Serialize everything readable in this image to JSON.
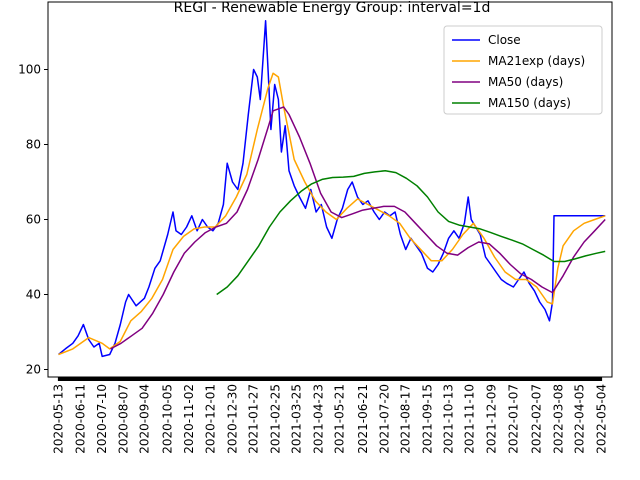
{
  "chart_data": {
    "type": "line",
    "title": "REGI - Renewable Energy Group: interval=1d",
    "xlabel": "",
    "ylabel": "",
    "xlim": [
      "2020-04-29",
      "2022-05-18"
    ],
    "ylim": [
      18,
      118
    ],
    "y_ticks": [
      20,
      40,
      60,
      80,
      100
    ],
    "x_ticks": [
      "2020-05-13",
      "2020-06-11",
      "2020-07-10",
      "2020-08-07",
      "2020-09-04",
      "2020-10-05",
      "2020-11-02",
      "2020-12-01",
      "2020-12-30",
      "2021-01-27",
      "2021-02-25",
      "2021-03-25",
      "2021-04-23",
      "2021-05-21",
      "2021-06-21",
      "2021-07-20",
      "2021-08-17",
      "2021-09-15",
      "2021-10-13",
      "2021-11-10",
      "2021-12-09",
      "2022-01-07",
      "2022-02-07",
      "2022-03-08",
      "2022-04-05",
      "2022-05-04"
    ],
    "grid": false,
    "legend_position": "top-right",
    "series": [
      {
        "name": "Close",
        "color": "#0000ff",
        "points": [
          [
            "2020-05-13",
            24
          ],
          [
            "2020-05-22",
            25.5
          ],
          [
            "2020-06-01",
            27
          ],
          [
            "2020-06-08",
            29
          ],
          [
            "2020-06-15",
            32
          ],
          [
            "2020-06-22",
            28
          ],
          [
            "2020-06-29",
            26
          ],
          [
            "2020-07-06",
            27
          ],
          [
            "2020-07-10",
            23.5
          ],
          [
            "2020-07-20",
            24
          ],
          [
            "2020-07-27",
            27
          ],
          [
            "2020-08-03",
            32
          ],
          [
            "2020-08-10",
            38
          ],
          [
            "2020-08-14",
            40
          ],
          [
            "2020-08-24",
            37
          ],
          [
            "2020-09-04",
            39
          ],
          [
            "2020-09-10",
            42
          ],
          [
            "2020-09-18",
            47
          ],
          [
            "2020-09-25",
            49
          ],
          [
            "2020-10-05",
            56
          ],
          [
            "2020-10-12",
            62
          ],
          [
            "2020-10-16",
            57
          ],
          [
            "2020-10-23",
            56
          ],
          [
            "2020-10-30",
            58
          ],
          [
            "2020-11-06",
            61
          ],
          [
            "2020-11-13",
            57
          ],
          [
            "2020-11-20",
            60
          ],
          [
            "2020-11-27",
            58
          ],
          [
            "2020-12-04",
            57
          ],
          [
            "2020-12-11",
            59
          ],
          [
            "2020-12-18",
            64
          ],
          [
            "2020-12-23",
            75
          ],
          [
            "2020-12-30",
            70
          ],
          [
            "2021-01-06",
            68
          ],
          [
            "2021-01-13",
            75
          ],
          [
            "2021-01-20",
            88
          ],
          [
            "2021-01-27",
            100
          ],
          [
            "2021-02-01",
            98
          ],
          [
            "2021-02-05",
            92
          ],
          [
            "2021-02-10",
            107
          ],
          [
            "2021-02-12",
            113
          ],
          [
            "2021-02-16",
            97
          ],
          [
            "2021-02-19",
            84
          ],
          [
            "2021-02-24",
            96
          ],
          [
            "2021-03-01",
            92
          ],
          [
            "2021-03-05",
            78
          ],
          [
            "2021-03-10",
            85
          ],
          [
            "2021-03-15",
            73
          ],
          [
            "2021-03-22",
            69
          ],
          [
            "2021-03-29",
            66
          ],
          [
            "2021-04-06",
            63
          ],
          [
            "2021-04-13",
            68
          ],
          [
            "2021-04-20",
            62
          ],
          [
            "2021-04-27",
            64
          ],
          [
            "2021-05-04",
            58
          ],
          [
            "2021-05-11",
            55
          ],
          [
            "2021-05-18",
            60
          ],
          [
            "2021-05-25",
            63
          ],
          [
            "2021-06-01",
            68
          ],
          [
            "2021-06-07",
            70
          ],
          [
            "2021-06-14",
            66
          ],
          [
            "2021-06-21",
            64
          ],
          [
            "2021-06-28",
            65
          ],
          [
            "2021-07-06",
            62
          ],
          [
            "2021-07-13",
            60
          ],
          [
            "2021-07-20",
            62
          ],
          [
            "2021-07-27",
            61
          ],
          [
            "2021-08-03",
            62
          ],
          [
            "2021-08-10",
            56
          ],
          [
            "2021-08-17",
            52
          ],
          [
            "2021-08-24",
            55
          ],
          [
            "2021-08-31",
            53
          ],
          [
            "2021-09-07",
            51
          ],
          [
            "2021-09-15",
            47
          ],
          [
            "2021-09-22",
            46
          ],
          [
            "2021-09-29",
            48
          ],
          [
            "2021-10-06",
            51
          ],
          [
            "2021-10-13",
            55
          ],
          [
            "2021-10-20",
            57
          ],
          [
            "2021-10-27",
            55
          ],
          [
            "2021-11-03",
            59
          ],
          [
            "2021-11-08",
            66
          ],
          [
            "2021-11-12",
            60
          ],
          [
            "2021-11-18",
            58
          ],
          [
            "2021-11-24",
            56
          ],
          [
            "2021-12-01",
            50
          ],
          [
            "2021-12-08",
            48
          ],
          [
            "2021-12-15",
            46
          ],
          [
            "2021-12-22",
            44
          ],
          [
            "2021-12-29",
            43
          ],
          [
            "2022-01-07",
            42
          ],
          [
            "2022-01-14",
            44
          ],
          [
            "2022-01-21",
            46
          ],
          [
            "2022-01-28",
            43
          ],
          [
            "2022-02-04",
            41
          ],
          [
            "2022-02-11",
            38
          ],
          [
            "2022-02-18",
            36
          ],
          [
            "2022-02-24",
            33
          ],
          [
            "2022-02-28",
            38
          ],
          [
            "2022-03-02",
            61
          ],
          [
            "2022-03-09",
            61
          ],
          [
            "2022-03-16",
            61
          ],
          [
            "2022-03-31",
            61
          ],
          [
            "2022-04-15",
            61
          ],
          [
            "2022-04-30",
            61
          ],
          [
            "2022-05-09",
            61
          ]
        ]
      },
      {
        "name": "MA21exp (days)",
        "color": "#ffa500",
        "points": [
          [
            "2020-05-13",
            24
          ],
          [
            "2020-06-01",
            25.5
          ],
          [
            "2020-06-22",
            28.5
          ],
          [
            "2020-07-10",
            27
          ],
          [
            "2020-07-20",
            25.5
          ],
          [
            "2020-08-03",
            27.5
          ],
          [
            "2020-08-17",
            33
          ],
          [
            "2020-08-31",
            35.5
          ],
          [
            "2020-09-14",
            39
          ],
          [
            "2020-09-28",
            44
          ],
          [
            "2020-10-12",
            52
          ],
          [
            "2020-10-26",
            55.5
          ],
          [
            "2020-11-09",
            57.5
          ],
          [
            "2020-11-23",
            58
          ],
          [
            "2020-12-07",
            58
          ],
          [
            "2020-12-21",
            61
          ],
          [
            "2021-01-04",
            66
          ],
          [
            "2021-01-18",
            72
          ],
          [
            "2021-02-01",
            84
          ],
          [
            "2021-02-15",
            95
          ],
          [
            "2021-02-22",
            99
          ],
          [
            "2021-03-01",
            98
          ],
          [
            "2021-03-08",
            90
          ],
          [
            "2021-03-15",
            83
          ],
          [
            "2021-03-22",
            76
          ],
          [
            "2021-04-05",
            70
          ],
          [
            "2021-04-19",
            65
          ],
          [
            "2021-05-03",
            62
          ],
          [
            "2021-05-17",
            60
          ],
          [
            "2021-05-31",
            63
          ],
          [
            "2021-06-14",
            65.5
          ],
          [
            "2021-06-28",
            64
          ],
          [
            "2021-07-12",
            62.5
          ],
          [
            "2021-07-26",
            61
          ],
          [
            "2021-08-09",
            59
          ],
          [
            "2021-08-23",
            55
          ],
          [
            "2021-09-06",
            52
          ],
          [
            "2021-09-20",
            49
          ],
          [
            "2021-10-04",
            49
          ],
          [
            "2021-10-18",
            52
          ],
          [
            "2021-11-01",
            56
          ],
          [
            "2021-11-15",
            59
          ],
          [
            "2021-11-29",
            55
          ],
          [
            "2021-12-13",
            50
          ],
          [
            "2021-12-27",
            46
          ],
          [
            "2022-01-10",
            44
          ],
          [
            "2022-01-24",
            44
          ],
          [
            "2022-02-07",
            42
          ],
          [
            "2022-02-21",
            38
          ],
          [
            "2022-02-28",
            37.5
          ],
          [
            "2022-03-07",
            47
          ],
          [
            "2022-03-14",
            53
          ],
          [
            "2022-03-28",
            57
          ],
          [
            "2022-04-11",
            59
          ],
          [
            "2022-04-25",
            60
          ],
          [
            "2022-05-09",
            61
          ]
        ]
      },
      {
        "name": "MA50 (days)",
        "color": "#800080",
        "points": [
          [
            "2020-07-21",
            25.5
          ],
          [
            "2020-08-04",
            27
          ],
          [
            "2020-08-18",
            29
          ],
          [
            "2020-09-01",
            31
          ],
          [
            "2020-09-15",
            35
          ],
          [
            "2020-09-29",
            40
          ],
          [
            "2020-10-13",
            46
          ],
          [
            "2020-10-27",
            51
          ],
          [
            "2020-11-10",
            54
          ],
          [
            "2020-11-24",
            56.5
          ],
          [
            "2020-12-08",
            58
          ],
          [
            "2020-12-22",
            59
          ],
          [
            "2021-01-05",
            62
          ],
          [
            "2021-01-19",
            68
          ],
          [
            "2021-02-02",
            76
          ],
          [
            "2021-02-16",
            85
          ],
          [
            "2021-02-22",
            89
          ],
          [
            "2021-03-01",
            89.5
          ],
          [
            "2021-03-08",
            90
          ],
          [
            "2021-03-15",
            88
          ],
          [
            "2021-03-29",
            82
          ],
          [
            "2021-04-12",
            75
          ],
          [
            "2021-04-26",
            67
          ],
          [
            "2021-05-10",
            62
          ],
          [
            "2021-05-24",
            60.5
          ],
          [
            "2021-06-07",
            61.5
          ],
          [
            "2021-06-21",
            62.5
          ],
          [
            "2021-07-05",
            63
          ],
          [
            "2021-07-19",
            63.5
          ],
          [
            "2021-08-02",
            63.5
          ],
          [
            "2021-08-16",
            62
          ],
          [
            "2021-08-30",
            59
          ],
          [
            "2021-09-13",
            56
          ],
          [
            "2021-09-27",
            53
          ],
          [
            "2021-10-11",
            51
          ],
          [
            "2021-10-25",
            50.5
          ],
          [
            "2021-11-08",
            52.5
          ],
          [
            "2021-11-22",
            54
          ],
          [
            "2021-12-06",
            53.5
          ],
          [
            "2021-12-20",
            51
          ],
          [
            "2022-01-03",
            48
          ],
          [
            "2022-01-17",
            45.5
          ],
          [
            "2022-01-31",
            44
          ],
          [
            "2022-02-14",
            42
          ],
          [
            "2022-02-28",
            40.5
          ],
          [
            "2022-03-14",
            45
          ],
          [
            "2022-03-28",
            50
          ],
          [
            "2022-04-11",
            54
          ],
          [
            "2022-04-25",
            57
          ],
          [
            "2022-05-09",
            60
          ]
        ]
      },
      {
        "name": "MA150 (days)",
        "color": "#008000",
        "points": [
          [
            "2020-12-09",
            40
          ],
          [
            "2020-12-23",
            42
          ],
          [
            "2021-01-06",
            45
          ],
          [
            "2021-01-20",
            49
          ],
          [
            "2021-02-03",
            53
          ],
          [
            "2021-02-17",
            58
          ],
          [
            "2021-03-03",
            62
          ],
          [
            "2021-03-17",
            65
          ],
          [
            "2021-03-31",
            67.5
          ],
          [
            "2021-04-14",
            69.5
          ],
          [
            "2021-04-28",
            70.7
          ],
          [
            "2021-05-12",
            71.2
          ],
          [
            "2021-05-26",
            71.3
          ],
          [
            "2021-06-09",
            71.5
          ],
          [
            "2021-06-23",
            72.3
          ],
          [
            "2021-07-07",
            72.7
          ],
          [
            "2021-07-21",
            73
          ],
          [
            "2021-08-04",
            72.5
          ],
          [
            "2021-08-18",
            71
          ],
          [
            "2021-09-01",
            69
          ],
          [
            "2021-09-15",
            66
          ],
          [
            "2021-09-29",
            62
          ],
          [
            "2021-10-13",
            59.5
          ],
          [
            "2021-10-27",
            58.5
          ],
          [
            "2021-11-10",
            58
          ],
          [
            "2021-11-24",
            57.5
          ],
          [
            "2021-12-08",
            56.5
          ],
          [
            "2021-12-22",
            55.5
          ],
          [
            "2022-01-05",
            54.5
          ],
          [
            "2022-01-19",
            53.5
          ],
          [
            "2022-02-02",
            52
          ],
          [
            "2022-02-16",
            50.5
          ],
          [
            "2022-03-02",
            48.8
          ],
          [
            "2022-03-16",
            48.8
          ],
          [
            "2022-03-30",
            49.5
          ],
          [
            "2022-04-13",
            50.3
          ],
          [
            "2022-04-27",
            51
          ],
          [
            "2022-05-09",
            51.5
          ]
        ]
      }
    ]
  }
}
